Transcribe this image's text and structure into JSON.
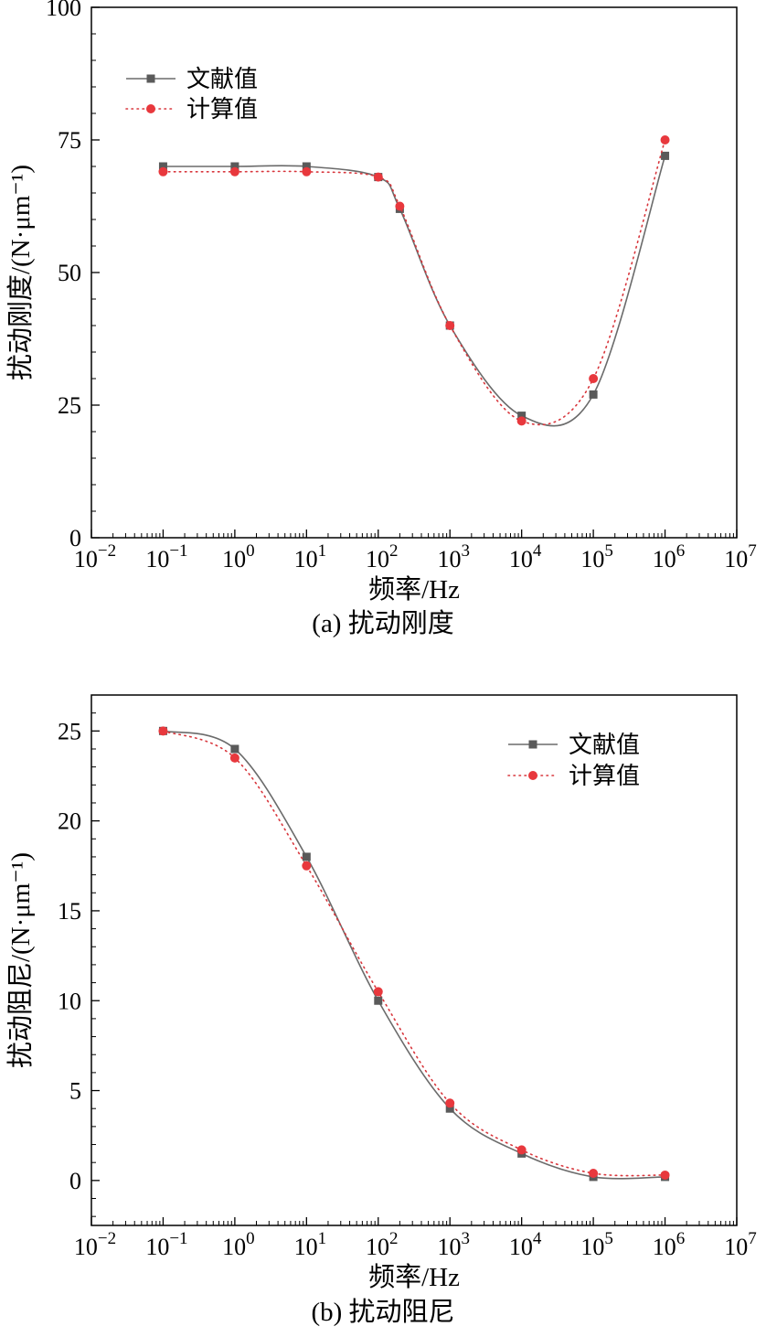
{
  "chart_data": [
    {
      "type": "line",
      "title": "(a) 扰动刚度",
      "xlabel": "频率/Hz",
      "ylabel": "扰动刚度/(N·μm⁻¹)",
      "x_scale": "log",
      "x_range_exponents": [
        -2,
        7
      ],
      "ylim": [
        0,
        100
      ],
      "y_major_ticks": [
        0,
        25,
        50,
        75,
        100
      ],
      "y_minor_step": 5,
      "grid": false,
      "legend_position": "top-left",
      "series": [
        {
          "name": "文献值",
          "marker": "square",
          "line_style": "solid",
          "color": "#6b6b6b",
          "marker_color": "#5a5a5a",
          "x": [
            0.1,
            1,
            10,
            100,
            200,
            1000,
            10000,
            100000,
            1000000
          ],
          "y": [
            70,
            70,
            70,
            68,
            62,
            40,
            23,
            27,
            72
          ]
        },
        {
          "name": "计算值",
          "marker": "circle",
          "line_style": "dotted",
          "color": "#d8363c",
          "marker_color": "#e8383d",
          "x": [
            0.1,
            1,
            10,
            100,
            200,
            1000,
            10000,
            100000,
            1000000
          ],
          "y": [
            69,
            69,
            69,
            68,
            62.5,
            40,
            22,
            30,
            75
          ]
        }
      ]
    },
    {
      "type": "line",
      "title": "(b) 扰动阻尼",
      "xlabel": "频率/Hz",
      "ylabel": "扰动阻尼/(N·μm⁻¹)",
      "x_scale": "log",
      "x_range_exponents": [
        -2,
        7
      ],
      "ylim": [
        -2.5,
        27
      ],
      "y_major_ticks": [
        0,
        5,
        10,
        15,
        20,
        25
      ],
      "y_minor_step": 1,
      "grid": false,
      "legend_position": "top-right",
      "series": [
        {
          "name": "文献值",
          "marker": "square",
          "line_style": "solid",
          "color": "#6b6b6b",
          "marker_color": "#5a5a5a",
          "x": [
            0.1,
            1,
            10,
            100,
            1000,
            10000,
            100000,
            1000000
          ],
          "y": [
            25,
            24,
            18,
            10,
            4,
            1.5,
            0.2,
            0.2
          ]
        },
        {
          "name": "计算值",
          "marker": "circle",
          "line_style": "dotted",
          "color": "#d8363c",
          "marker_color": "#e8383d",
          "x": [
            0.1,
            1,
            10,
            100,
            1000,
            10000,
            100000,
            1000000
          ],
          "y": [
            25,
            23.5,
            17.5,
            10.5,
            4.3,
            1.7,
            0.4,
            0.3
          ]
        }
      ]
    }
  ]
}
